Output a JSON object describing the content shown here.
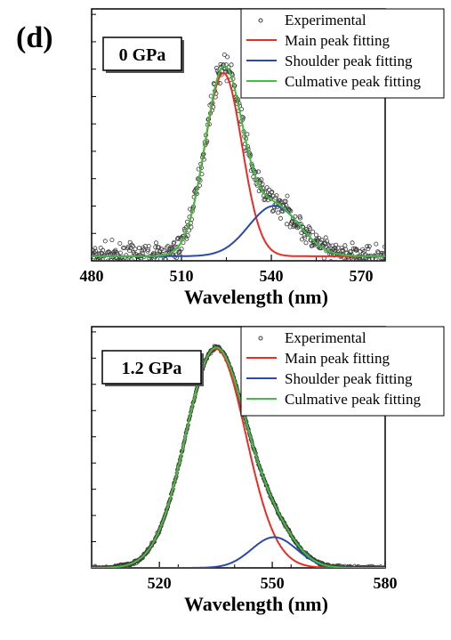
{
  "panel_label": "(d)",
  "colors": {
    "experimental": "#3a3a3a",
    "main": "#ee2a24",
    "shoulder": "#2a4aa8",
    "cumulative": "#3fbf3f"
  },
  "chart_data": [
    {
      "type": "line",
      "pressure_label": "0 GPa",
      "xlabel": "Wavelength (nm)",
      "ylabel": "",
      "xlim": [
        480,
        578
      ],
      "ylim": [
        0,
        1.1
      ],
      "xticks": [
        480,
        510,
        540,
        570
      ],
      "legend_position": "top-right",
      "legend": [
        "Experimental",
        "Main peak fitting",
        "Shoulder peak fitting",
        "Culmative peak fitting"
      ],
      "noise": 0.035,
      "baseline": 0.02,
      "main_peak": {
        "center": 524,
        "amplitude": 0.8,
        "sigma": 6.2
      },
      "shoulder_peak": {
        "center": 541,
        "amplitude": 0.22,
        "sigma": 8.5
      }
    },
    {
      "type": "line",
      "pressure_label": "1.2 GPa",
      "xlabel": "Wavelength (nm)",
      "ylabel": "",
      "xlim": [
        502,
        580
      ],
      "ylim": [
        0,
        1.1
      ],
      "xticks": [
        520,
        550,
        580
      ],
      "legend_position": "top-right",
      "legend": [
        "Experimental",
        "Main peak fitting",
        "Shoulder peak fitting",
        "Culmative peak fitting"
      ],
      "noise": 0.006,
      "baseline": 0.0,
      "main_peak": {
        "center": 535,
        "amplitude": 1.0,
        "sigma": 8.0
      },
      "shoulder_peak": {
        "center": 550.5,
        "amplitude": 0.14,
        "sigma": 6.0
      }
    }
  ]
}
